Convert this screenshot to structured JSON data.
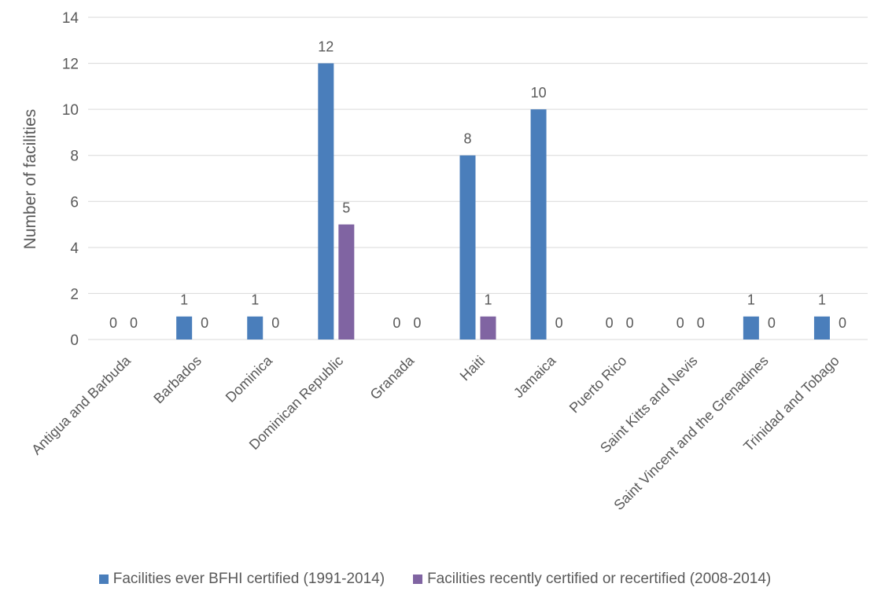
{
  "chart_data": {
    "type": "bar",
    "categories": [
      "Antigua and Barbuda",
      "Barbados",
      "Dominica",
      "Dominican Republic",
      "Granada",
      "Haiti",
      "Jamaica",
      "Puerto Rico",
      "Saint Kitts and Nevis",
      "Saint Vincent and the Grenadines",
      "Trinidad and Tobago"
    ],
    "series": [
      {
        "name": "Facilities ever BFHI certified (1991-2014)",
        "values": [
          0,
          1,
          1,
          12,
          0,
          8,
          10,
          0,
          0,
          1,
          1
        ],
        "color": "#4a7ebb"
      },
      {
        "name": "Facilities recently certified or recertified (2008-2014)",
        "values": [
          0,
          0,
          0,
          5,
          0,
          1,
          0,
          0,
          0,
          0,
          0
        ],
        "color": "#8064a2"
      }
    ],
    "ylabel": "Number of facilities",
    "xlabel": "",
    "ylim": [
      0,
      14
    ],
    "yticks": [
      0,
      2,
      4,
      6,
      8,
      10,
      12,
      14
    ],
    "grid": true,
    "legend": "bottom",
    "data_labels": true
  }
}
